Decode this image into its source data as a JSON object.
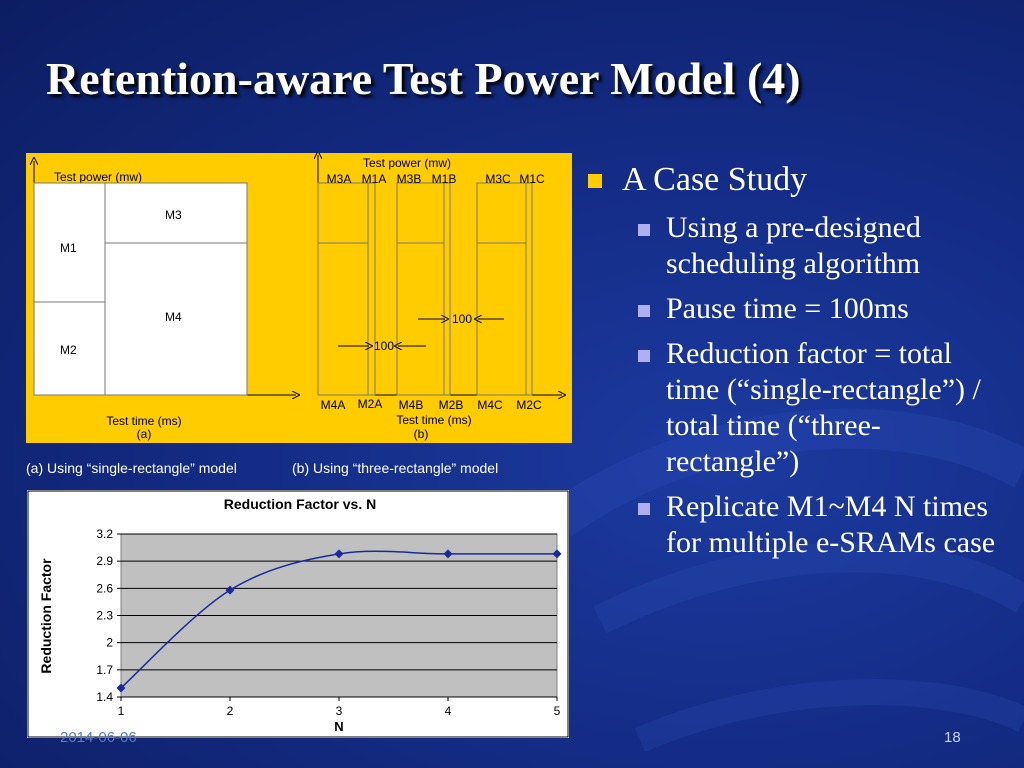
{
  "slide": {
    "title": "Retention-aware Test Power Model (4)",
    "date": "2014-06-06",
    "page_number": "18"
  },
  "diagram": {
    "a": {
      "ylabel": "Test power (mw)",
      "blocks": [
        "M1",
        "M2",
        "M3",
        "M4"
      ],
      "xlabel": "Test time (ms)",
      "sub": "(a)"
    },
    "b": {
      "ylabel": "Test power (mw)",
      "top_labels": [
        "M3A",
        "M1A",
        "M3B",
        "M1B",
        "M3C",
        "M1C"
      ],
      "bottom_labels": [
        "M4A",
        "M2A",
        "M4B",
        "M2B",
        "M4C",
        "M2C"
      ],
      "pause1": "100",
      "pause2": "100",
      "xlabel": "Test time (ms)",
      "sub": "(b)"
    }
  },
  "captions": {
    "a": "(a) Using “single-rectangle” model",
    "b": "(b) Using “three-rectangle” model"
  },
  "bullets": {
    "main": "A Case Study",
    "subs": [
      "Using a pre-designed scheduling algorithm",
      "Pause time = 100ms",
      "Reduction factor = total time (“single-rectangle”) / total time (“three-rectangle”)",
      "Replicate M1~M4 N times for multiple e-SRAMs case"
    ]
  },
  "chart_data": {
    "type": "line",
    "title": "Reduction Factor vs. N",
    "xlabel": "N",
    "ylabel": "Reduction Factor",
    "x": [
      1,
      2,
      3,
      4,
      5
    ],
    "values": [
      1.5,
      2.58,
      2.98,
      2.98,
      2.98
    ],
    "xticks": [
      "1",
      "2",
      "3",
      "4",
      "5"
    ],
    "yticks": [
      "3.2",
      "2.9",
      "2.6",
      "2.3",
      "2",
      "1.7",
      "1.4"
    ],
    "ylim": [
      1.4,
      3.2
    ],
    "xlim": [
      1,
      5
    ],
    "grid": true,
    "colors": {
      "line": "#1a2a9c",
      "plot_bg": "#c0c0c0"
    }
  }
}
